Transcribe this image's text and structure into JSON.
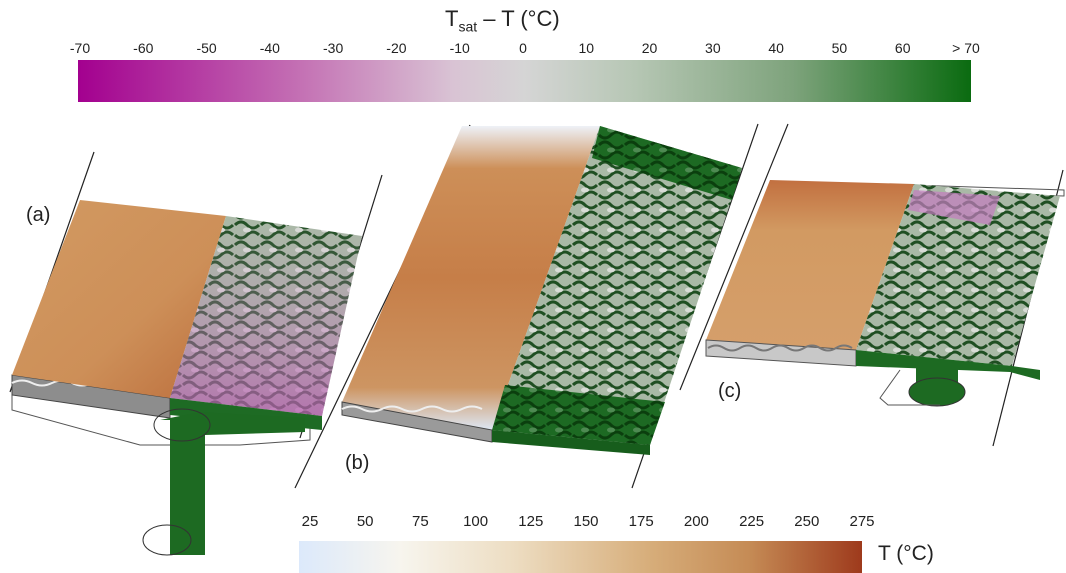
{
  "top_colorbar": {
    "title_main": "T",
    "title_sub": "sat",
    "title_rest": " – T (°C)",
    "ticks": [
      "-70",
      "-60",
      "-50",
      "-40",
      "-30",
      "-20",
      "-10",
      "0",
      "10",
      "20",
      "30",
      "40",
      "50",
      "60",
      "> 70"
    ],
    "colors": {
      "min": "#a3008f",
      "mid": "#d5d5d5",
      "max": "#0a6b10"
    }
  },
  "bottom_colorbar": {
    "ticks": [
      "25",
      "50",
      "75",
      "100",
      "125",
      "150",
      "175",
      "200",
      "225",
      "250",
      "275"
    ],
    "unit_label": "T (°C)",
    "colors": {
      "min": "#dce9fb",
      "max": "#9e3a1c"
    }
  },
  "panels": {
    "a": "(a)",
    "b": "(b)",
    "c": "(c)"
  }
}
